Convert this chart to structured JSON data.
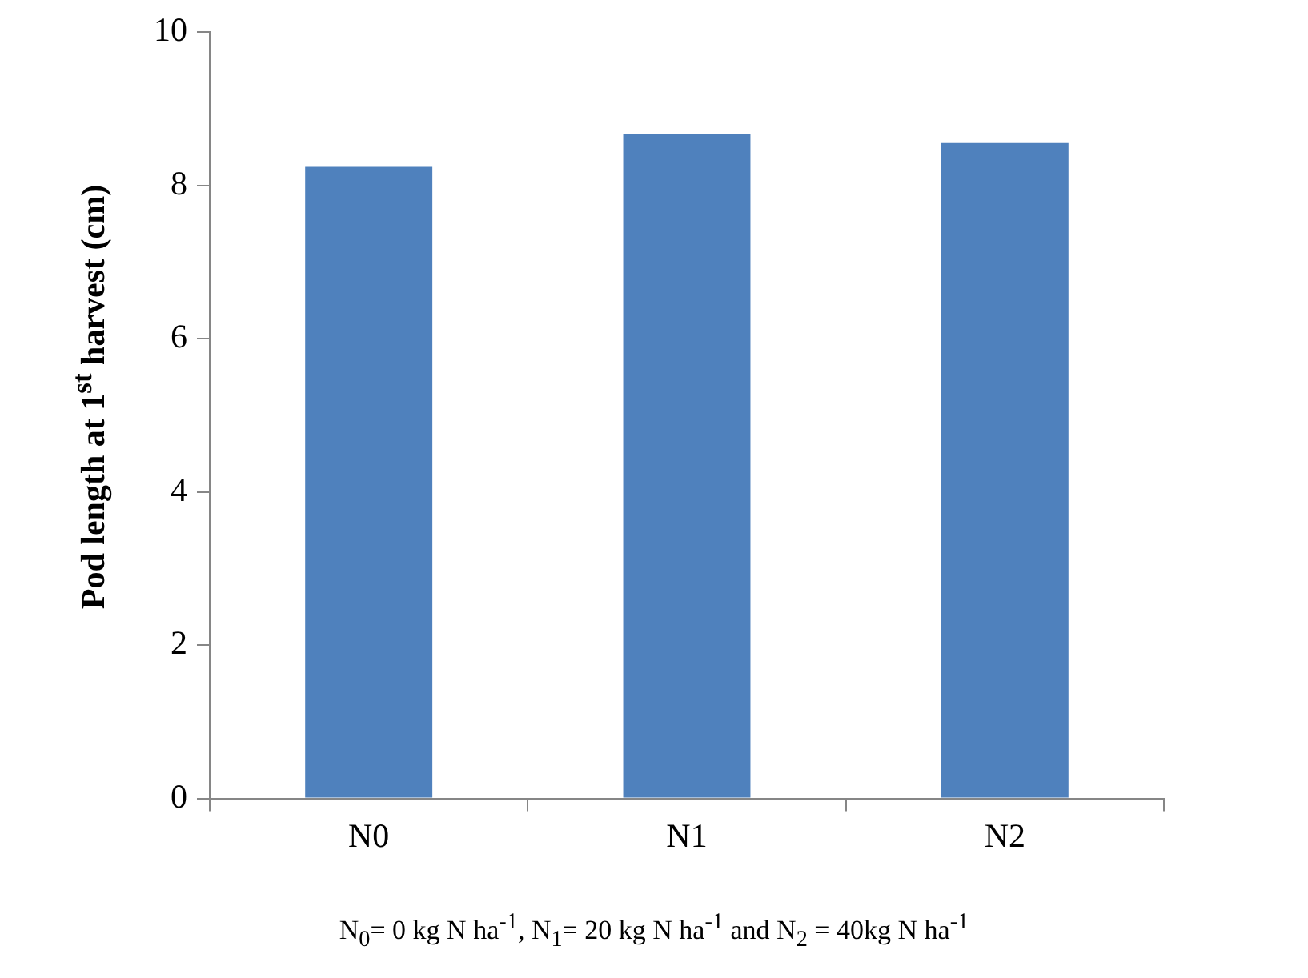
{
  "chart_data": {
    "type": "bar",
    "ylabel": "Pod length at 1$^{st}$ harvest (cm)",
    "categories": [
      "N0",
      "N1",
      "N2"
    ],
    "values": [
      8.24,
      8.67,
      8.55
    ],
    "color": "#4f81bd",
    "ylim": [
      0,
      10
    ],
    "yticks": [
      0,
      2,
      4,
      6,
      8,
      10
    ],
    "grid": false,
    "legend": false,
    "annotations": [
      "N$_{0}$= 0 kg N ha$^{-1}$, N$_{1}$= 20 kg N ha$^{-1}$ and N$_{2}$ = 40kg N ha$^{-1}$"
    ]
  }
}
